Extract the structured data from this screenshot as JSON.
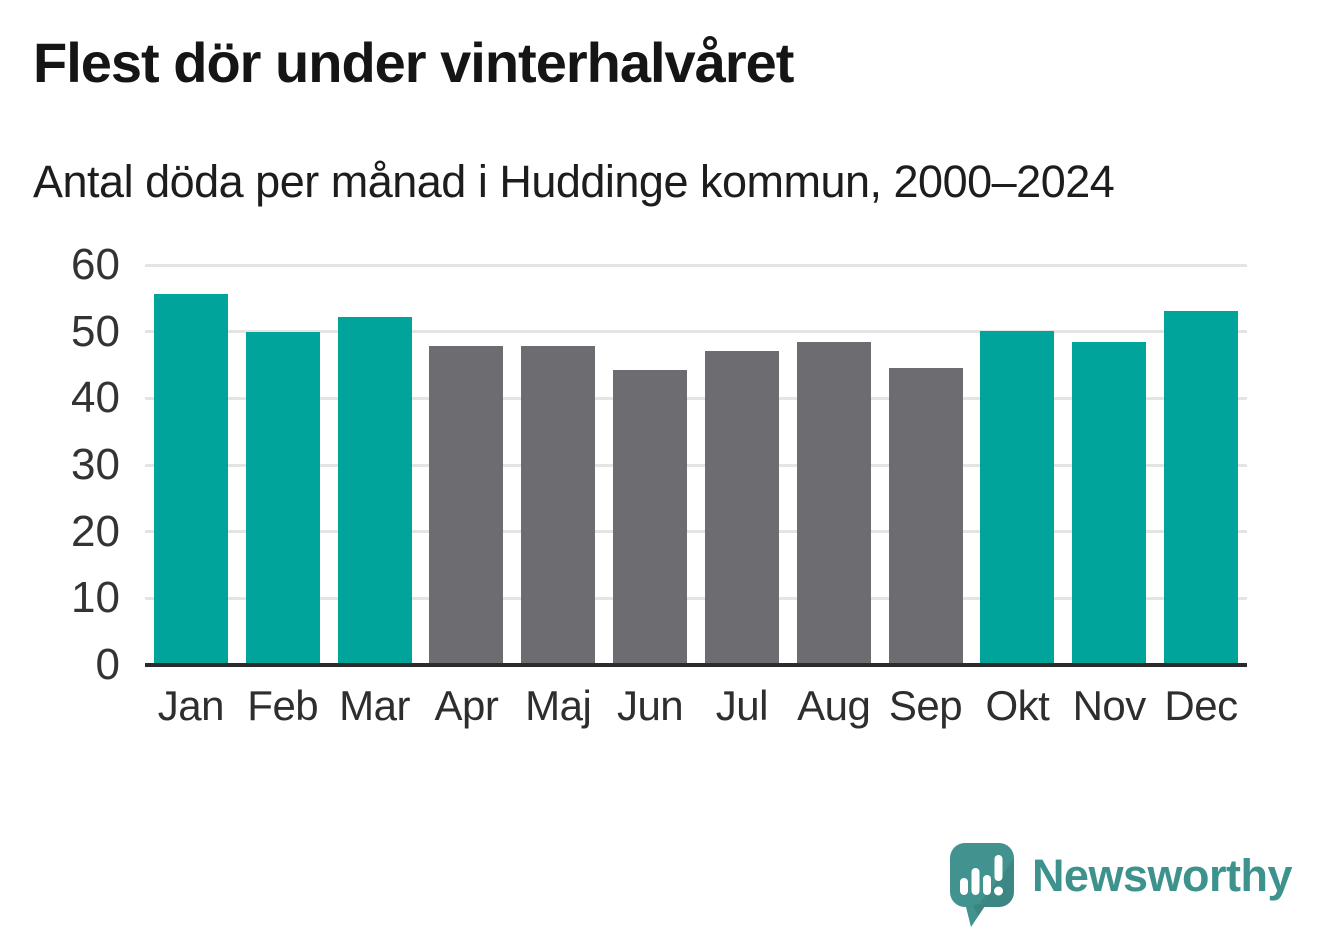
{
  "header": {
    "title": "Flest dör under vinterhalvåret",
    "subtitle": "Antal döda per månad i Huddinge kommun, 2000–2024"
  },
  "chart_data": {
    "type": "bar",
    "title": "Flest dör under vinterhalvåret",
    "subtitle": "Antal döda per månad i Huddinge kommun, 2000–2024",
    "categories": [
      "Jan",
      "Feb",
      "Mar",
      "Apr",
      "Maj",
      "Jun",
      "Jul",
      "Aug",
      "Sep",
      "Okt",
      "Nov",
      "Dec"
    ],
    "values": [
      55.6,
      49.9,
      52.2,
      47.9,
      47.8,
      44.2,
      47.1,
      48.5,
      44.6,
      50.1,
      48.4,
      53.1
    ],
    "bar_colors": [
      "#00a49b",
      "#00a49b",
      "#00a49b",
      "#6c6c71",
      "#6c6c71",
      "#6c6c71",
      "#6c6c71",
      "#6c6c71",
      "#6c6c71",
      "#00a49b",
      "#00a49b",
      "#00a49b"
    ],
    "highlighted_months": [
      "Jan",
      "Feb",
      "Mar",
      "Okt",
      "Nov",
      "Dec"
    ],
    "colors": {
      "winter_bar": "#00a49b",
      "summer_bar": "#6c6c71",
      "gridline": "#e4e4e4",
      "axis_line": "#2b2b2b"
    },
    "xlabel": "",
    "ylabel": "",
    "yticks": [
      0,
      10,
      20,
      30,
      40,
      50,
      60
    ],
    "ylim": [
      0,
      60
    ],
    "grid": true,
    "legend": "none"
  },
  "footer": {
    "brand_name": "Newsworthy",
    "brand_color": "#3e928e",
    "logo_icon": "speech-bubble-bar-chart-icon"
  }
}
